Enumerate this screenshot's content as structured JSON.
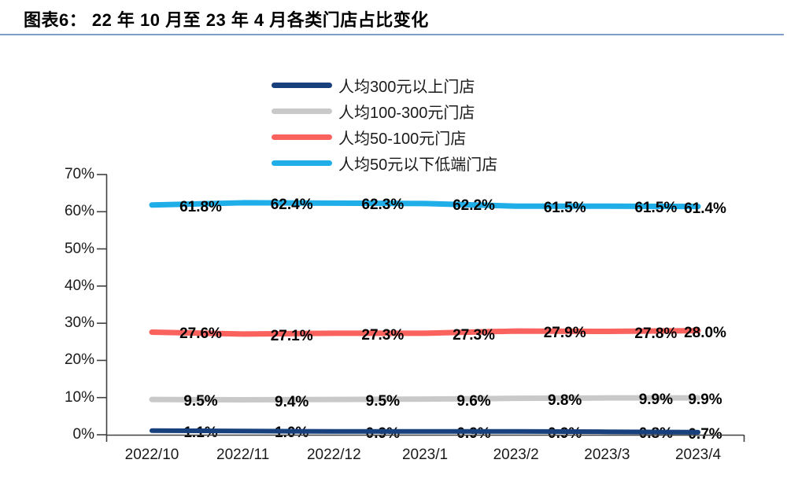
{
  "header": {
    "title": "图表6： 22 年 10 月至 23 年 4 月各类门店占比变化",
    "underline_color": "#7E9DC8"
  },
  "chart_data": {
    "type": "line",
    "title": "22 年 10 月至 23 年 4 月各类门店占比变化",
    "categories": [
      "2022/10",
      "2022/11",
      "2022/12",
      "2023/1",
      "2023/2",
      "2023/3",
      "2023/4"
    ],
    "series": [
      {
        "name": "人均300元以上门店",
        "color": "#17407C",
        "values": [
          1.1,
          1.0,
          0.9,
          0.9,
          0.9,
          0.8,
          0.7
        ]
      },
      {
        "name": "人均100-300元门店",
        "color": "#C9C9C9",
        "values": [
          9.5,
          9.4,
          9.5,
          9.6,
          9.8,
          9.9,
          9.9
        ]
      },
      {
        "name": "人均50-100元门店",
        "color": "#FA625E",
        "values": [
          27.6,
          27.1,
          27.3,
          27.3,
          27.9,
          27.8,
          28.0
        ]
      },
      {
        "name": "人均50元以下低端门店",
        "color": "#1FAEE8",
        "values": [
          61.8,
          62.4,
          62.3,
          62.2,
          61.5,
          61.5,
          61.4
        ]
      }
    ],
    "y_tick_labels": [
      "0%",
      "10%",
      "20%",
      "30%",
      "40%",
      "50%",
      "60%",
      "70%"
    ],
    "ylim": [
      0,
      70
    ],
    "grid": false,
    "data_labels": true,
    "data_label_suffix": "%",
    "legend_position": "top-center",
    "axis_color": "#404040"
  }
}
